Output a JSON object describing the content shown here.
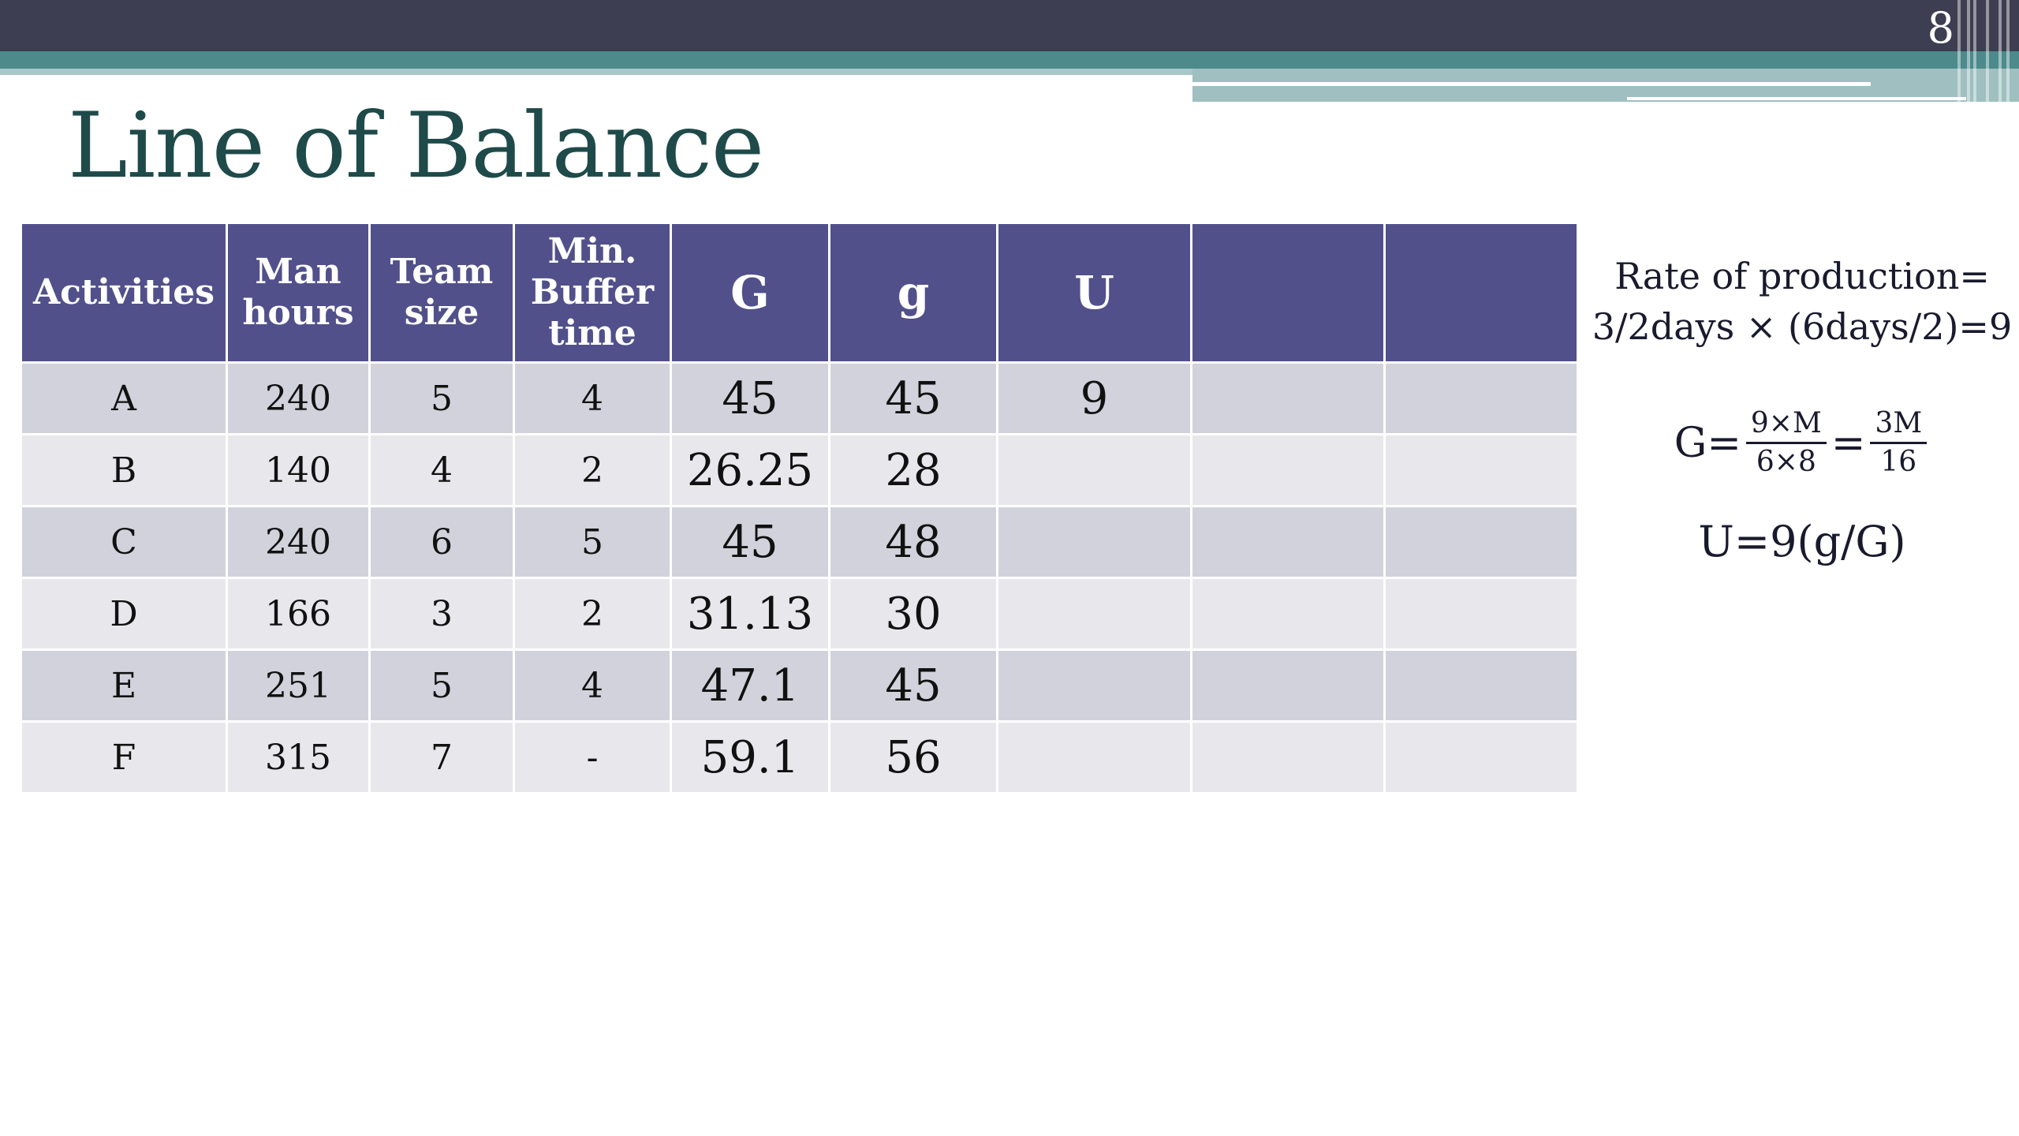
{
  "slide": {
    "number": "8",
    "title": "Line of Balance"
  },
  "colors": {
    "header_fill": "#51508a",
    "row_odd": "#d2d2dc",
    "row_even": "#e8e8ec",
    "title_color": "#1f4a4a",
    "band_dark": "#3e3e52",
    "band_teal": "#4c8a8c"
  },
  "table": {
    "headers": [
      [
        "Activities"
      ],
      [
        "Man",
        "hours"
      ],
      [
        "Team",
        "size"
      ],
      [
        "Min.",
        "Buffer",
        "time"
      ],
      [
        "G"
      ],
      [
        "g"
      ],
      [
        "U"
      ],
      [
        ""
      ],
      [
        ""
      ]
    ],
    "rows": [
      [
        "A",
        "240",
        "5",
        "4",
        "45",
        "45",
        "9",
        "",
        ""
      ],
      [
        "B",
        "140",
        "4",
        "2",
        "26.25",
        "28",
        "",
        "",
        ""
      ],
      [
        "C",
        "240",
        "6",
        "5",
        "45",
        "48",
        "",
        "",
        ""
      ],
      [
        "D",
        "166",
        "3",
        "2",
        "31.13",
        "30",
        "",
        "",
        ""
      ],
      [
        "E",
        "251",
        "5",
        "4",
        "47.1",
        "45",
        "",
        "",
        ""
      ],
      [
        "F",
        "315",
        "7",
        "-",
        "59.1",
        "56",
        "",
        "",
        ""
      ]
    ]
  },
  "notes": {
    "rate_line1": "Rate of production=",
    "rate_line2": "3/2days × (6days/2)=9",
    "g_lhs": "G=",
    "g_frac1_num": "9×M",
    "g_frac1_den": "6×8",
    "g_eq": "=",
    "g_frac2_num": "3M",
    "g_frac2_den": "16",
    "u_formula": "U=9(g/G)"
  }
}
